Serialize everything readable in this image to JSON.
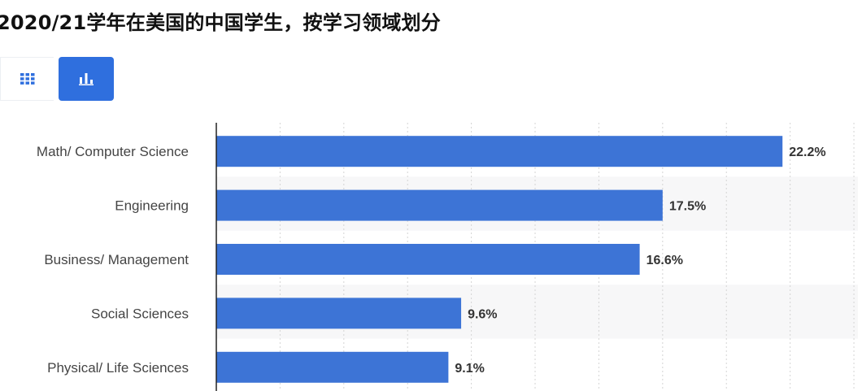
{
  "title": "2020/21学年在美国的中国学生，按学习领域划分",
  "toolbar": {
    "table_icon": "grid-icon",
    "chart_icon": "bar-chart-icon",
    "active_color": "#2f6fde"
  },
  "chart_data": {
    "type": "bar",
    "orientation": "horizontal",
    "categories": [
      "Math/ Computer Science",
      "Engineering",
      "Business/ Management",
      "Social Sciences",
      "Physical/ Life Sciences"
    ],
    "values": [
      22.2,
      17.5,
      16.6,
      9.6,
      9.1
    ],
    "value_labels": [
      "22.2%",
      "17.5%",
      "16.6%",
      "9.6%",
      "9.1%"
    ],
    "unit": "%",
    "xlim": [
      0,
      25
    ],
    "grid": true,
    "bar_color": "#3d74d6"
  }
}
